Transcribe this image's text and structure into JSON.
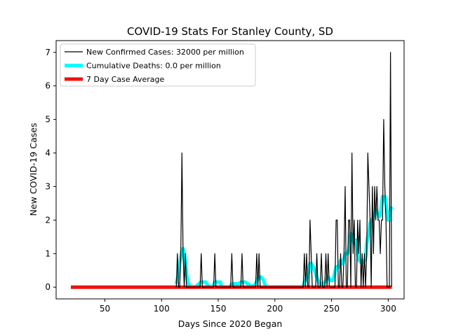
{
  "chart_data": {
    "type": "line",
    "title": "COVID-19 Stats For Stanley County, SD",
    "xlabel": "Days Since 2020 Began",
    "ylabel": "New COVID-19 Cases",
    "xlim": [
      7,
      314
    ],
    "ylim": [
      -0.35,
      7.35
    ],
    "xticks": [
      50,
      100,
      150,
      200,
      250,
      300
    ],
    "yticks": [
      0,
      1,
      2,
      3,
      4,
      5,
      6,
      7
    ],
    "grid": false,
    "legend_position": "top-left",
    "series": [
      {
        "name": "New Confirmed Cases: 32000 per million",
        "color": "#000000",
        "points": [
          [
            113,
            0
          ],
          [
            114,
            1
          ],
          [
            115,
            0
          ],
          [
            116,
            0
          ],
          [
            117,
            1
          ],
          [
            118,
            4
          ],
          [
            119,
            1
          ],
          [
            120,
            0
          ],
          [
            121,
            1
          ],
          [
            122,
            0
          ],
          [
            123,
            0
          ],
          [
            124,
            0
          ],
          [
            125,
            0
          ],
          [
            126,
            0
          ],
          [
            127,
            0
          ],
          [
            128,
            0
          ],
          [
            129,
            0
          ],
          [
            130,
            0
          ],
          [
            131,
            0
          ],
          [
            132,
            0
          ],
          [
            133,
            0
          ],
          [
            134,
            0
          ],
          [
            135,
            1
          ],
          [
            136,
            0
          ],
          [
            137,
            0
          ],
          [
            138,
            0
          ],
          [
            139,
            0
          ],
          [
            140,
            0
          ],
          [
            141,
            0
          ],
          [
            142,
            0
          ],
          [
            143,
            0
          ],
          [
            144,
            0
          ],
          [
            145,
            0
          ],
          [
            146,
            0
          ],
          [
            147,
            1
          ],
          [
            148,
            0
          ],
          [
            149,
            0
          ],
          [
            150,
            0
          ],
          [
            151,
            0
          ],
          [
            152,
            0
          ],
          [
            153,
            0
          ],
          [
            154,
            0
          ],
          [
            155,
            0
          ],
          [
            156,
            0
          ],
          [
            157,
            0
          ],
          [
            158,
            0
          ],
          [
            159,
            0
          ],
          [
            160,
            0
          ],
          [
            161,
            0
          ],
          [
            162,
            1
          ],
          [
            163,
            0
          ],
          [
            164,
            0
          ],
          [
            165,
            0
          ],
          [
            166,
            0
          ],
          [
            167,
            0
          ],
          [
            168,
            0
          ],
          [
            169,
            0
          ],
          [
            170,
            0
          ],
          [
            171,
            1
          ],
          [
            172,
            0
          ],
          [
            173,
            0
          ],
          [
            174,
            0
          ],
          [
            175,
            0
          ],
          [
            176,
            0
          ],
          [
            177,
            0
          ],
          [
            178,
            0
          ],
          [
            179,
            0
          ],
          [
            180,
            0
          ],
          [
            181,
            0
          ],
          [
            182,
            0
          ],
          [
            183,
            0
          ],
          [
            184,
            1
          ],
          [
            185,
            0
          ],
          [
            186,
            1
          ],
          [
            187,
            0
          ],
          [
            188,
            0
          ],
          [
            189,
            0
          ],
          [
            190,
            0
          ],
          [
            191,
            0
          ],
          [
            192,
            0
          ],
          [
            193,
            0
          ],
          [
            194,
            0
          ],
          [
            195,
            0
          ],
          [
            196,
            0
          ],
          [
            197,
            0
          ],
          [
            198,
            0
          ],
          [
            199,
            0
          ],
          [
            200,
            0
          ],
          [
            201,
            0
          ],
          [
            202,
            0
          ],
          [
            203,
            0
          ],
          [
            204,
            0
          ],
          [
            205,
            0
          ],
          [
            206,
            0
          ],
          [
            207,
            0
          ],
          [
            208,
            0
          ],
          [
            209,
            0
          ],
          [
            210,
            0
          ],
          [
            211,
            0
          ],
          [
            212,
            0
          ],
          [
            213,
            0
          ],
          [
            214,
            0
          ],
          [
            215,
            0
          ],
          [
            216,
            0
          ],
          [
            217,
            0
          ],
          [
            218,
            0
          ],
          [
            219,
            0
          ],
          [
            220,
            0
          ],
          [
            221,
            0
          ],
          [
            222,
            0
          ],
          [
            223,
            0
          ],
          [
            224,
            0
          ],
          [
            225,
            0
          ],
          [
            226,
            1
          ],
          [
            227,
            0
          ],
          [
            228,
            1
          ],
          [
            229,
            0
          ],
          [
            230,
            0
          ],
          [
            231,
            2
          ],
          [
            232,
            1
          ],
          [
            233,
            0
          ],
          [
            234,
            0
          ],
          [
            235,
            0
          ],
          [
            236,
            0
          ],
          [
            237,
            1
          ],
          [
            238,
            0
          ],
          [
            239,
            0
          ],
          [
            240,
            0
          ],
          [
            241,
            1
          ],
          [
            242,
            0
          ],
          [
            243,
            0
          ],
          [
            244,
            0
          ],
          [
            245,
            1
          ],
          [
            246,
            0
          ],
          [
            247,
            1
          ],
          [
            248,
            0
          ],
          [
            249,
            0
          ],
          [
            250,
            0
          ],
          [
            251,
            0
          ],
          [
            252,
            0
          ],
          [
            253,
            0
          ],
          [
            254,
            2
          ],
          [
            255,
            2
          ],
          [
            256,
            0
          ],
          [
            257,
            0
          ],
          [
            258,
            1
          ],
          [
            259,
            0
          ],
          [
            260,
            0
          ],
          [
            261,
            1
          ],
          [
            262,
            3
          ],
          [
            263,
            0
          ],
          [
            264,
            0
          ],
          [
            265,
            2
          ],
          [
            266,
            2
          ],
          [
            267,
            0
          ],
          [
            268,
            4
          ],
          [
            269,
            1
          ],
          [
            270,
            2
          ],
          [
            271,
            0
          ],
          [
            272,
            0
          ],
          [
            273,
            2
          ],
          [
            274,
            1
          ],
          [
            275,
            2
          ],
          [
            276,
            0
          ],
          [
            277,
            1
          ],
          [
            278,
            0
          ],
          [
            279,
            1
          ],
          [
            280,
            0
          ],
          [
            281,
            1
          ],
          [
            282,
            4
          ],
          [
            283,
            3
          ],
          [
            284,
            2
          ],
          [
            285,
            0
          ],
          [
            286,
            3
          ],
          [
            287,
            1
          ],
          [
            288,
            3
          ],
          [
            289,
            2
          ],
          [
            290,
            3
          ],
          [
            291,
            2
          ],
          [
            292,
            2
          ],
          [
            293,
            1
          ],
          [
            294,
            2
          ],
          [
            295,
            2
          ],
          [
            296,
            5
          ],
          [
            297,
            3
          ],
          [
            298,
            2
          ],
          [
            299,
            0
          ],
          [
            300,
            0
          ],
          [
            301,
            0
          ],
          [
            302,
            7
          ],
          [
            303,
            0
          ]
        ]
      },
      {
        "name": "Cumulative Deaths: 0.0 per million",
        "color": "#00ffff",
        "points": [
          [
            113,
            0.1
          ],
          [
            115,
            0.4
          ],
          [
            116,
            0.7
          ],
          [
            117,
            0.9
          ],
          [
            118,
            1.1
          ],
          [
            119,
            1.15
          ],
          [
            120,
            1.0
          ],
          [
            121,
            0.8
          ],
          [
            122,
            0.4
          ],
          [
            123,
            0.2
          ],
          [
            124,
            0.1
          ],
          [
            125,
            0
          ],
          [
            126,
            0
          ],
          [
            127,
            0
          ],
          [
            128,
            0
          ],
          [
            130,
            0
          ],
          [
            133,
            0.1
          ],
          [
            135,
            0.15
          ],
          [
            137,
            0.15
          ],
          [
            139,
            0.15
          ],
          [
            140,
            0.1
          ],
          [
            142,
            0
          ],
          [
            145,
            0
          ],
          [
            147,
            0.15
          ],
          [
            149,
            0.15
          ],
          [
            152,
            0.15
          ],
          [
            153,
            0
          ],
          [
            158,
            0
          ],
          [
            160,
            0
          ],
          [
            162,
            0.1
          ],
          [
            164,
            0.1
          ],
          [
            166,
            0.1
          ],
          [
            168,
            0.1
          ],
          [
            170,
            0.15
          ],
          [
            174,
            0.15
          ],
          [
            176,
            0.1
          ],
          [
            178,
            0.05
          ],
          [
            180,
            0
          ],
          [
            183,
            0.1
          ],
          [
            185,
            0.25
          ],
          [
            186,
            0.3
          ],
          [
            188,
            0.3
          ],
          [
            190,
            0.2
          ],
          [
            191,
            0.1
          ],
          [
            192,
            0
          ],
          [
            225,
            0
          ],
          [
            226,
            0.15
          ],
          [
            228,
            0.25
          ],
          [
            230,
            0.5
          ],
          [
            231,
            0.7
          ],
          [
            232,
            0.7
          ],
          [
            234,
            0.6
          ],
          [
            236,
            0.4
          ],
          [
            238,
            0.2
          ],
          [
            240,
            0.1
          ],
          [
            241,
            0.1
          ],
          [
            243,
            0.1
          ],
          [
            245,
            0.2
          ],
          [
            247,
            0.3
          ],
          [
            249,
            0.2
          ],
          [
            251,
            0.2
          ],
          [
            252,
            0.3
          ],
          [
            254,
            0.6
          ],
          [
            256,
            0.6
          ],
          [
            258,
            0.8
          ],
          [
            260,
            0.7
          ],
          [
            262,
            1.0
          ],
          [
            264,
            1.0
          ],
          [
            265,
            1.1
          ],
          [
            266,
            1.3
          ],
          [
            267,
            1.6
          ],
          [
            268,
            1.5
          ],
          [
            270,
            1.3
          ],
          [
            271,
            1.4
          ],
          [
            272,
            1.4
          ],
          [
            273,
            1.0
          ],
          [
            274,
            0.8
          ],
          [
            275,
            0.8
          ],
          [
            276,
            0.75
          ],
          [
            278,
            0.75
          ],
          [
            279,
            0.8
          ],
          [
            280,
            0.85
          ],
          [
            281,
            1.3
          ],
          [
            282,
            1.5
          ],
          [
            283,
            1.6
          ],
          [
            284,
            1.9
          ],
          [
            285,
            2.0
          ],
          [
            286,
            2.0
          ],
          [
            287,
            2.1
          ],
          [
            288,
            2.2
          ],
          [
            289,
            2.3
          ],
          [
            290,
            2.2
          ],
          [
            291,
            2.2
          ],
          [
            292,
            2.1
          ],
          [
            293,
            2.15
          ],
          [
            294,
            2.4
          ],
          [
            295,
            2.7
          ],
          [
            296,
            2.7
          ],
          [
            297,
            2.7
          ],
          [
            298,
            2.5
          ],
          [
            299,
            2.2
          ],
          [
            300,
            2.0
          ],
          [
            301,
            2.0
          ],
          [
            302,
            2.3
          ],
          [
            303,
            2.4
          ]
        ]
      },
      {
        "name": "7 Day Case Average",
        "color": "#ee1111",
        "points": [
          [
            20,
            0
          ],
          [
            303,
            0
          ]
        ]
      }
    ]
  }
}
